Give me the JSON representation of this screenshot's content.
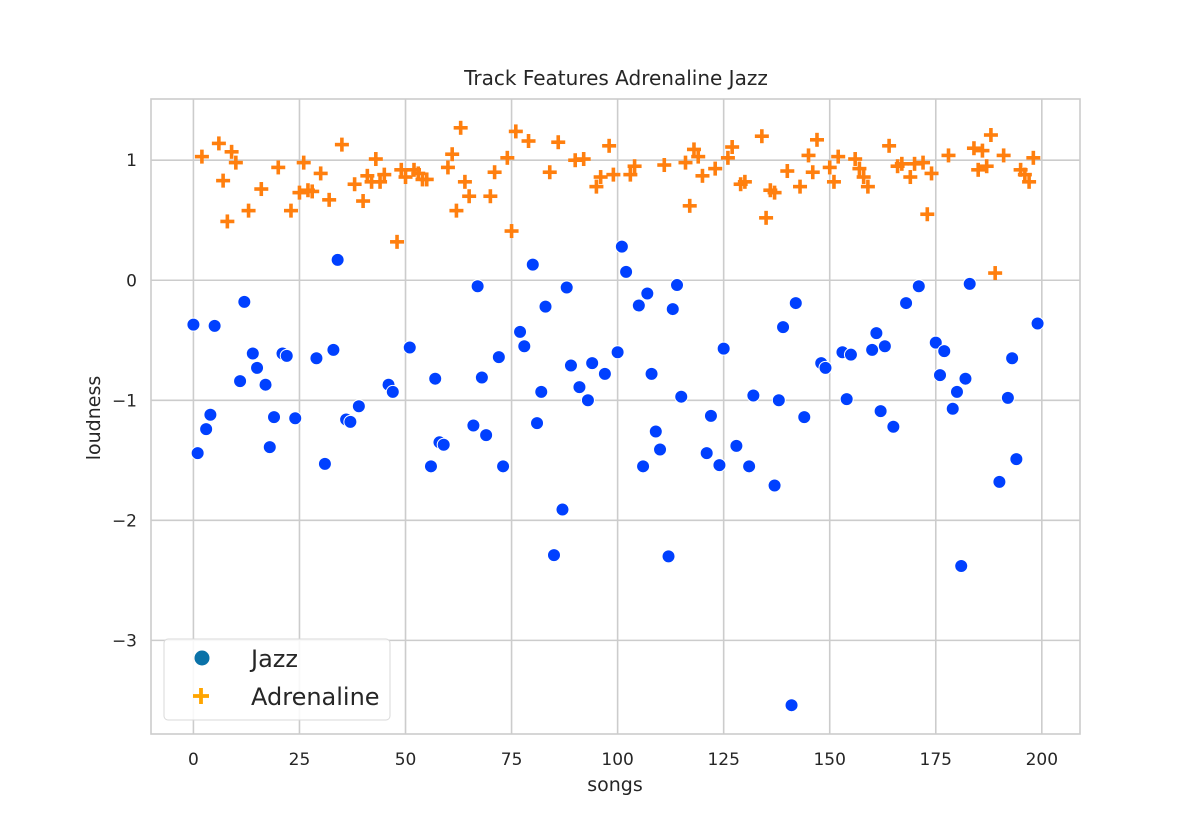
{
  "chart_data": {
    "type": "scatter",
    "title": "Track Features Adrenaline Jazz",
    "xlabel": "songs",
    "ylabel": "loudness",
    "xlim": [
      -10,
      209
    ],
    "ylim": [
      -3.78,
      1.51
    ],
    "xticks": [
      0,
      25,
      50,
      75,
      100,
      125,
      150,
      175,
      200
    ],
    "yticks": [
      -3,
      -2,
      -1,
      0,
      1
    ],
    "grid": true,
    "legend_position": "lower-left",
    "series": [
      {
        "name": "Jazz",
        "marker": "circle",
        "color": "#0040ff",
        "legend_color": "#0a72a8",
        "points": [
          [
            0,
            -0.37
          ],
          [
            1,
            -1.44
          ],
          [
            3,
            -1.24
          ],
          [
            4,
            -1.12
          ],
          [
            5,
            -0.38
          ],
          [
            11,
            -0.84
          ],
          [
            12,
            -0.18
          ],
          [
            14,
            -0.61
          ],
          [
            15,
            -0.73
          ],
          [
            17,
            -0.87
          ],
          [
            18,
            -1.39
          ],
          [
            19,
            -1.14
          ],
          [
            21,
            -0.61
          ],
          [
            22,
            -0.63
          ],
          [
            24,
            -1.15
          ],
          [
            29,
            -0.65
          ],
          [
            31,
            -1.53
          ],
          [
            33,
            -0.58
          ],
          [
            34,
            0.17
          ],
          [
            36,
            -1.16
          ],
          [
            37,
            -1.18
          ],
          [
            39,
            -1.05
          ],
          [
            46,
            -0.87
          ],
          [
            47,
            -0.93
          ],
          [
            51,
            -0.56
          ],
          [
            56,
            -1.55
          ],
          [
            57,
            -0.82
          ],
          [
            58,
            -1.35
          ],
          [
            59,
            -1.37
          ],
          [
            66,
            -1.21
          ],
          [
            67,
            -0.05
          ],
          [
            68,
            -0.81
          ],
          [
            69,
            -1.29
          ],
          [
            72,
            -0.64
          ],
          [
            73,
            -1.55
          ],
          [
            77,
            -0.43
          ],
          [
            78,
            -0.55
          ],
          [
            80,
            0.13
          ],
          [
            81,
            -1.19
          ],
          [
            82,
            -0.93
          ],
          [
            83,
            -0.22
          ],
          [
            85,
            -2.29
          ],
          [
            87,
            -1.91
          ],
          [
            88,
            -0.06
          ],
          [
            89,
            -0.71
          ],
          [
            91,
            -0.89
          ],
          [
            93,
            -1.0
          ],
          [
            94,
            -0.69
          ],
          [
            97,
            -0.78
          ],
          [
            100,
            -0.6
          ],
          [
            101,
            0.28
          ],
          [
            102,
            0.07
          ],
          [
            105,
            -0.21
          ],
          [
            106,
            -1.55
          ],
          [
            107,
            -0.11
          ],
          [
            108,
            -0.78
          ],
          [
            109,
            -1.26
          ],
          [
            110,
            -1.41
          ],
          [
            112,
            -2.3
          ],
          [
            113,
            -0.24
          ],
          [
            114,
            -0.04
          ],
          [
            115,
            -0.97
          ],
          [
            121,
            -1.44
          ],
          [
            122,
            -1.13
          ],
          [
            124,
            -1.54
          ],
          [
            125,
            -0.57
          ],
          [
            128,
            -1.38
          ],
          [
            131,
            -1.55
          ],
          [
            132,
            -0.96
          ],
          [
            137,
            -1.71
          ],
          [
            138,
            -1.0
          ],
          [
            139,
            -0.39
          ],
          [
            141,
            -3.54
          ],
          [
            142,
            -0.19
          ],
          [
            144,
            -1.14
          ],
          [
            148,
            -0.69
          ],
          [
            149,
            -0.73
          ],
          [
            153,
            -0.6
          ],
          [
            154,
            -0.99
          ],
          [
            155,
            -0.62
          ],
          [
            160,
            -0.58
          ],
          [
            161,
            -0.44
          ],
          [
            162,
            -1.09
          ],
          [
            163,
            -0.55
          ],
          [
            165,
            -1.22
          ],
          [
            168,
            -0.19
          ],
          [
            171,
            -0.05
          ],
          [
            175,
            -0.52
          ],
          [
            176,
            -0.79
          ],
          [
            177,
            -0.59
          ],
          [
            179,
            -1.07
          ],
          [
            180,
            -0.93
          ],
          [
            181,
            -2.38
          ],
          [
            182,
            -0.82
          ],
          [
            183,
            -0.03
          ],
          [
            190,
            -1.68
          ],
          [
            192,
            -0.98
          ],
          [
            193,
            -0.65
          ],
          [
            194,
            -1.49
          ],
          [
            199,
            -0.36
          ]
        ]
      },
      {
        "name": "Adrenaline",
        "marker": "plus",
        "color": "#ff7f0e",
        "legend_color": "#ffa500",
        "points": [
          [
            2,
            1.03
          ],
          [
            6,
            1.14
          ],
          [
            7,
            0.83
          ],
          [
            8,
            0.49
          ],
          [
            9,
            1.07
          ],
          [
            10,
            0.98
          ],
          [
            13,
            0.58
          ],
          [
            16,
            0.76
          ],
          [
            20,
            0.94
          ],
          [
            23,
            0.58
          ],
          [
            25,
            0.73
          ],
          [
            26,
            0.98
          ],
          [
            27,
            0.75
          ],
          [
            28,
            0.74
          ],
          [
            30,
            0.89
          ],
          [
            32,
            0.67
          ],
          [
            35,
            1.13
          ],
          [
            38,
            0.8
          ],
          [
            40,
            0.66
          ],
          [
            41,
            0.87
          ],
          [
            42,
            0.82
          ],
          [
            43,
            1.01
          ],
          [
            44,
            0.82
          ],
          [
            45,
            0.88
          ],
          [
            48,
            0.32
          ],
          [
            49,
            0.92
          ],
          [
            50,
            0.86
          ],
          [
            52,
            0.92
          ],
          [
            53,
            0.89
          ],
          [
            54,
            0.84
          ],
          [
            55,
            0.84
          ],
          [
            60,
            0.94
          ],
          [
            61,
            1.05
          ],
          [
            62,
            0.58
          ],
          [
            63,
            1.27
          ],
          [
            64,
            0.82
          ],
          [
            65,
            0.7
          ],
          [
            70,
            0.7
          ],
          [
            71,
            0.9
          ],
          [
            74,
            1.02
          ],
          [
            75,
            0.41
          ],
          [
            76,
            1.24
          ],
          [
            79,
            1.16
          ],
          [
            84,
            0.9
          ],
          [
            86,
            1.15
          ],
          [
            90,
            1.0
          ],
          [
            92,
            1.01
          ],
          [
            95,
            0.78
          ],
          [
            96,
            0.86
          ],
          [
            98,
            1.12
          ],
          [
            99,
            0.88
          ],
          [
            103,
            0.88
          ],
          [
            104,
            0.95
          ],
          [
            111,
            0.96
          ],
          [
            116,
            0.98
          ],
          [
            117,
            0.62
          ],
          [
            118,
            1.09
          ],
          [
            119,
            1.03
          ],
          [
            120,
            0.87
          ],
          [
            123,
            0.93
          ],
          [
            126,
            1.02
          ],
          [
            127,
            1.11
          ],
          [
            129,
            0.8
          ],
          [
            130,
            0.82
          ],
          [
            134,
            1.2
          ],
          [
            135,
            0.52
          ],
          [
            136,
            0.75
          ],
          [
            137,
            0.73
          ],
          [
            140,
            0.91
          ],
          [
            143,
            0.78
          ],
          [
            145,
            1.04
          ],
          [
            146,
            0.9
          ],
          [
            147,
            1.17
          ],
          [
            150,
            0.94
          ],
          [
            151,
            0.82
          ],
          [
            152,
            1.03
          ],
          [
            156,
            1.01
          ],
          [
            157,
            0.93
          ],
          [
            158,
            0.86
          ],
          [
            159,
            0.78
          ],
          [
            164,
            1.12
          ],
          [
            166,
            0.95
          ],
          [
            167,
            0.97
          ],
          [
            169,
            0.86
          ],
          [
            170,
            0.97
          ],
          [
            172,
            0.98
          ],
          [
            173,
            0.55
          ],
          [
            174,
            0.89
          ],
          [
            178,
            1.04
          ],
          [
            184,
            1.1
          ],
          [
            185,
            0.92
          ],
          [
            186,
            1.08
          ],
          [
            187,
            0.95
          ],
          [
            188,
            1.21
          ],
          [
            189,
            0.06
          ],
          [
            191,
            1.04
          ],
          [
            195,
            0.92
          ],
          [
            196,
            0.88
          ],
          [
            197,
            0.82
          ],
          [
            198,
            1.02
          ]
        ]
      }
    ]
  }
}
